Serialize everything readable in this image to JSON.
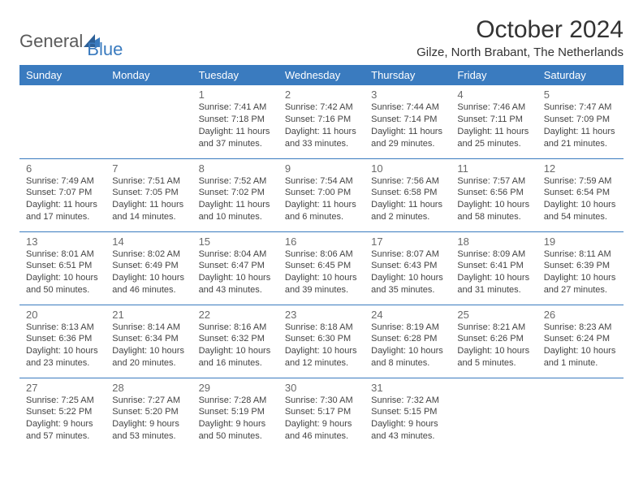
{
  "logo": {
    "text_general": "General",
    "text_blue": "Blue",
    "mark_color": "#3a7bbf",
    "text_general_color": "#5a5a5a"
  },
  "header": {
    "month_title": "October 2024",
    "location": "Gilze, North Brabant, The Netherlands"
  },
  "colors": {
    "header_bg": "#3a7bbf",
    "header_text": "#ffffff",
    "border": "#3a7bbf",
    "body_bg": "#ffffff",
    "day_num_color": "#6a6a6a",
    "info_text_color": "#444444"
  },
  "typography": {
    "month_title_fontsize": 30,
    "location_fontsize": 15,
    "weekday_fontsize": 13,
    "day_num_fontsize": 13,
    "info_fontsize": 11
  },
  "calendar": {
    "type": "table",
    "weekdays": [
      "Sunday",
      "Monday",
      "Tuesday",
      "Wednesday",
      "Thursday",
      "Friday",
      "Saturday"
    ],
    "weeks": [
      [
        null,
        null,
        {
          "day": "1",
          "sunrise": "Sunrise: 7:41 AM",
          "sunset": "Sunset: 7:18 PM",
          "daylight": "Daylight: 11 hours and 37 minutes."
        },
        {
          "day": "2",
          "sunrise": "Sunrise: 7:42 AM",
          "sunset": "Sunset: 7:16 PM",
          "daylight": "Daylight: 11 hours and 33 minutes."
        },
        {
          "day": "3",
          "sunrise": "Sunrise: 7:44 AM",
          "sunset": "Sunset: 7:14 PM",
          "daylight": "Daylight: 11 hours and 29 minutes."
        },
        {
          "day": "4",
          "sunrise": "Sunrise: 7:46 AM",
          "sunset": "Sunset: 7:11 PM",
          "daylight": "Daylight: 11 hours and 25 minutes."
        },
        {
          "day": "5",
          "sunrise": "Sunrise: 7:47 AM",
          "sunset": "Sunset: 7:09 PM",
          "daylight": "Daylight: 11 hours and 21 minutes."
        }
      ],
      [
        {
          "day": "6",
          "sunrise": "Sunrise: 7:49 AM",
          "sunset": "Sunset: 7:07 PM",
          "daylight": "Daylight: 11 hours and 17 minutes."
        },
        {
          "day": "7",
          "sunrise": "Sunrise: 7:51 AM",
          "sunset": "Sunset: 7:05 PM",
          "daylight": "Daylight: 11 hours and 14 minutes."
        },
        {
          "day": "8",
          "sunrise": "Sunrise: 7:52 AM",
          "sunset": "Sunset: 7:02 PM",
          "daylight": "Daylight: 11 hours and 10 minutes."
        },
        {
          "day": "9",
          "sunrise": "Sunrise: 7:54 AM",
          "sunset": "Sunset: 7:00 PM",
          "daylight": "Daylight: 11 hours and 6 minutes."
        },
        {
          "day": "10",
          "sunrise": "Sunrise: 7:56 AM",
          "sunset": "Sunset: 6:58 PM",
          "daylight": "Daylight: 11 hours and 2 minutes."
        },
        {
          "day": "11",
          "sunrise": "Sunrise: 7:57 AM",
          "sunset": "Sunset: 6:56 PM",
          "daylight": "Daylight: 10 hours and 58 minutes."
        },
        {
          "day": "12",
          "sunrise": "Sunrise: 7:59 AM",
          "sunset": "Sunset: 6:54 PM",
          "daylight": "Daylight: 10 hours and 54 minutes."
        }
      ],
      [
        {
          "day": "13",
          "sunrise": "Sunrise: 8:01 AM",
          "sunset": "Sunset: 6:51 PM",
          "daylight": "Daylight: 10 hours and 50 minutes."
        },
        {
          "day": "14",
          "sunrise": "Sunrise: 8:02 AM",
          "sunset": "Sunset: 6:49 PM",
          "daylight": "Daylight: 10 hours and 46 minutes."
        },
        {
          "day": "15",
          "sunrise": "Sunrise: 8:04 AM",
          "sunset": "Sunset: 6:47 PM",
          "daylight": "Daylight: 10 hours and 43 minutes."
        },
        {
          "day": "16",
          "sunrise": "Sunrise: 8:06 AM",
          "sunset": "Sunset: 6:45 PM",
          "daylight": "Daylight: 10 hours and 39 minutes."
        },
        {
          "day": "17",
          "sunrise": "Sunrise: 8:07 AM",
          "sunset": "Sunset: 6:43 PM",
          "daylight": "Daylight: 10 hours and 35 minutes."
        },
        {
          "day": "18",
          "sunrise": "Sunrise: 8:09 AM",
          "sunset": "Sunset: 6:41 PM",
          "daylight": "Daylight: 10 hours and 31 minutes."
        },
        {
          "day": "19",
          "sunrise": "Sunrise: 8:11 AM",
          "sunset": "Sunset: 6:39 PM",
          "daylight": "Daylight: 10 hours and 27 minutes."
        }
      ],
      [
        {
          "day": "20",
          "sunrise": "Sunrise: 8:13 AM",
          "sunset": "Sunset: 6:36 PM",
          "daylight": "Daylight: 10 hours and 23 minutes."
        },
        {
          "day": "21",
          "sunrise": "Sunrise: 8:14 AM",
          "sunset": "Sunset: 6:34 PM",
          "daylight": "Daylight: 10 hours and 20 minutes."
        },
        {
          "day": "22",
          "sunrise": "Sunrise: 8:16 AM",
          "sunset": "Sunset: 6:32 PM",
          "daylight": "Daylight: 10 hours and 16 minutes."
        },
        {
          "day": "23",
          "sunrise": "Sunrise: 8:18 AM",
          "sunset": "Sunset: 6:30 PM",
          "daylight": "Daylight: 10 hours and 12 minutes."
        },
        {
          "day": "24",
          "sunrise": "Sunrise: 8:19 AM",
          "sunset": "Sunset: 6:28 PM",
          "daylight": "Daylight: 10 hours and 8 minutes."
        },
        {
          "day": "25",
          "sunrise": "Sunrise: 8:21 AM",
          "sunset": "Sunset: 6:26 PM",
          "daylight": "Daylight: 10 hours and 5 minutes."
        },
        {
          "day": "26",
          "sunrise": "Sunrise: 8:23 AM",
          "sunset": "Sunset: 6:24 PM",
          "daylight": "Daylight: 10 hours and 1 minute."
        }
      ],
      [
        {
          "day": "27",
          "sunrise": "Sunrise: 7:25 AM",
          "sunset": "Sunset: 5:22 PM",
          "daylight": "Daylight: 9 hours and 57 minutes."
        },
        {
          "day": "28",
          "sunrise": "Sunrise: 7:27 AM",
          "sunset": "Sunset: 5:20 PM",
          "daylight": "Daylight: 9 hours and 53 minutes."
        },
        {
          "day": "29",
          "sunrise": "Sunrise: 7:28 AM",
          "sunset": "Sunset: 5:19 PM",
          "daylight": "Daylight: 9 hours and 50 minutes."
        },
        {
          "day": "30",
          "sunrise": "Sunrise: 7:30 AM",
          "sunset": "Sunset: 5:17 PM",
          "daylight": "Daylight: 9 hours and 46 minutes."
        },
        {
          "day": "31",
          "sunrise": "Sunrise: 7:32 AM",
          "sunset": "Sunset: 5:15 PM",
          "daylight": "Daylight: 9 hours and 43 minutes."
        },
        null,
        null
      ]
    ]
  }
}
